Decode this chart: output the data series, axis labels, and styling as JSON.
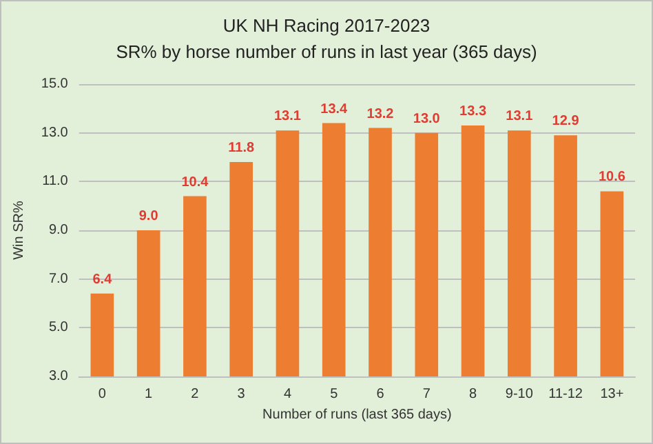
{
  "chart_data": {
    "type": "bar",
    "title": "UK NH Racing 2017-2023",
    "subtitle": "SR% by horse number of runs in last year (365 days)",
    "xlabel": "Number of runs (last 365 days)",
    "ylabel": "Win SR%",
    "categories": [
      "0",
      "1",
      "2",
      "3",
      "4",
      "5",
      "6",
      "7",
      "8",
      "9-10",
      "11-12",
      "13+"
    ],
    "values": [
      6.4,
      9.0,
      10.4,
      11.8,
      13.1,
      13.4,
      13.2,
      13.0,
      13.3,
      13.1,
      12.9,
      10.6
    ],
    "value_labels": [
      "6.4",
      "9.0",
      "10.4",
      "11.8",
      "13.1",
      "13.4",
      "13.2",
      "13.0",
      "13.3",
      "13.1",
      "12.9",
      "10.6"
    ],
    "color": "#ed7d31",
    "ylim": [
      3,
      15
    ],
    "yticks": [
      {
        "value": 3,
        "label": "3.0"
      },
      {
        "value": 5,
        "label": "5.0"
      },
      {
        "value": 7,
        "label": "7.0"
      },
      {
        "value": 9,
        "label": "9.0"
      },
      {
        "value": 11,
        "label": "11.0"
      },
      {
        "value": 13,
        "label": "13.0"
      },
      {
        "value": 15,
        "label": "15.0"
      }
    ],
    "grid": "y"
  }
}
